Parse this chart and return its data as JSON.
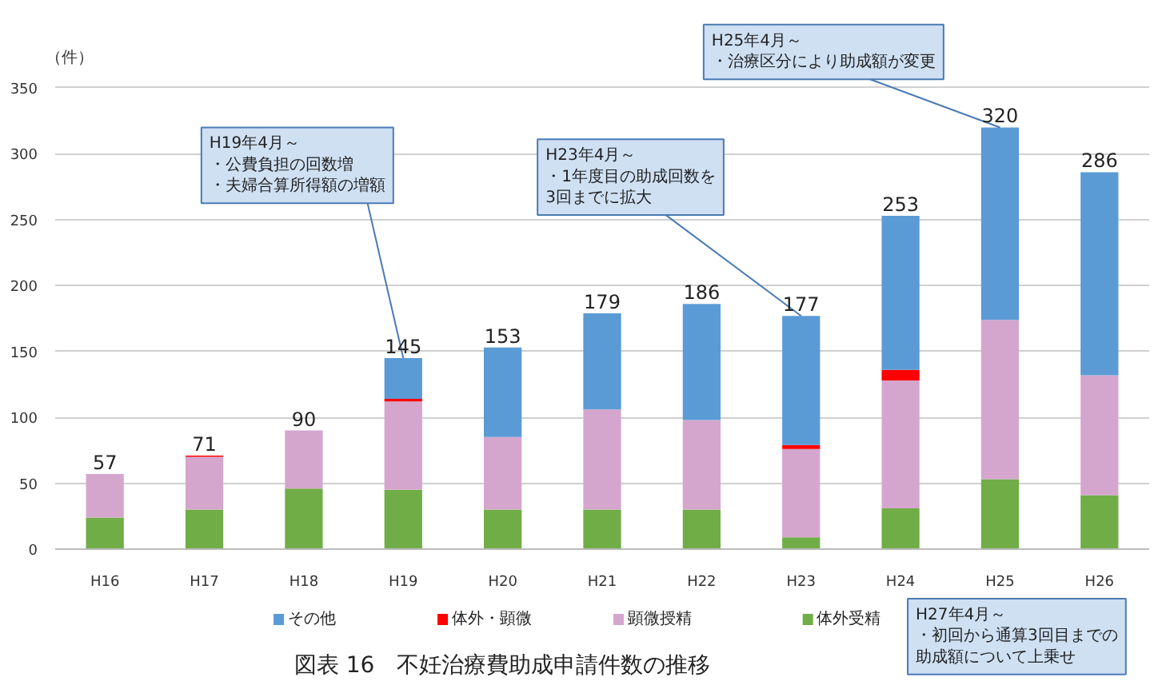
{
  "chart_data": {
    "type": "bar",
    "stacked": true,
    "title": "図表 16　不妊治療費助成申請件数の推移",
    "ylabel": "（件）",
    "categories": [
      "H16",
      "H17",
      "H18",
      "H19",
      "H20",
      "H21",
      "H22",
      "H23",
      "H24",
      "H25",
      "H26"
    ],
    "series": [
      {
        "name": "体外受精",
        "color": "#70ad47",
        "values": [
          24,
          30,
          46,
          45,
          30,
          30,
          30,
          9,
          31,
          53,
          41
        ]
      },
      {
        "name": "顕微授精",
        "color": "#d5a6cd",
        "values": [
          33,
          40,
          44,
          67,
          55,
          76,
          68,
          67,
          97,
          121,
          91
        ]
      },
      {
        "name": "体外・顕微",
        "color": "#ff0000",
        "values": [
          0,
          1,
          0,
          2,
          0,
          0,
          0,
          3,
          8,
          0,
          0
        ]
      },
      {
        "name": "その他",
        "color": "#5b9bd5",
        "values": [
          0,
          0,
          0,
          31,
          68,
          73,
          88,
          98,
          117,
          146,
          154
        ]
      }
    ],
    "totals": [
      "57",
      "71",
      "90",
      "145",
      "153",
      "179",
      "186",
      "177",
      "253",
      "320",
      "286"
    ],
    "ylim": [
      0,
      350
    ],
    "yticks": [
      0,
      50,
      100,
      150,
      200,
      250,
      300,
      350
    ],
    "grid": "y",
    "legend": "bottom",
    "annotations": [
      {
        "text": "H19年4月～・公費負担の回数増・夫婦合算所得額の増額",
        "x": "H19",
        "y": 145
      },
      {
        "text": "H23年4月～・1年度目の助成回数を3回までに拡大",
        "x": "H23",
        "y": 177
      },
      {
        "text": "H25年4月～・治療区分により助成額が変更",
        "x": "H25",
        "y": 320
      },
      "H27年4月～・初回から通算3回目までの助成額について上乗せ"
    ]
  }
}
